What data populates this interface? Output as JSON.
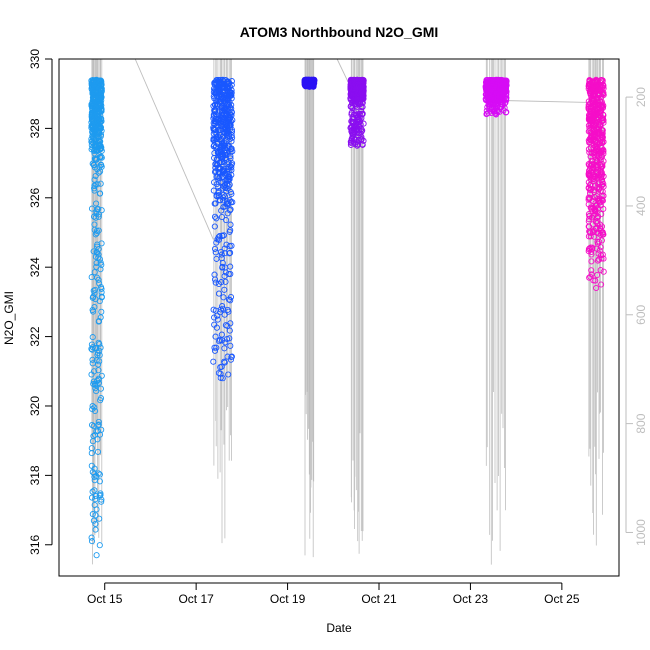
{
  "chart_data": {
    "type": "scatter",
    "title": "ATOM3 Northbound N2O_GMI",
    "xlabel": "Date",
    "ylabel": "N2O_GMI",
    "x_range": [
      "2017-10-14T00:00",
      "2017-10-26T06:00"
    ],
    "ylim": [
      315.1,
      330.0
    ],
    "y_ticks": [
      "316",
      "318",
      "320",
      "322",
      "324",
      "326",
      "328",
      "330"
    ],
    "x_ticks": [
      {
        "date": "2017-10-15T00:00",
        "label": "Oct 15"
      },
      {
        "date": "2017-10-17T00:00",
        "label": "Oct 17"
      },
      {
        "date": "2017-10-19T00:00",
        "label": "Oct 19"
      },
      {
        "date": "2017-10-21T00:00",
        "label": "Oct 21"
      },
      {
        "date": "2017-10-23T00:00",
        "label": "Oct 23"
      },
      {
        "date": "2017-10-25T00:00",
        "label": "Oct 25"
      }
    ],
    "secondary_axis": {
      "side": "right",
      "quantity": "pressure",
      "range": [
        130,
        1080
      ],
      "reversed": true,
      "tick_labels": [
        "200",
        "400",
        "600",
        "800",
        "1000"
      ],
      "color": "#bebebe"
    },
    "profile_line_color": "#bebebe",
    "flights": [
      {
        "start": "2017-10-14T17:00",
        "end": "2017-10-14T22:30",
        "color": "#1e9bef",
        "y_min": 315.7,
        "y_max": 329.4,
        "bulk_low": 327.0
      },
      {
        "start": "2017-10-17T09:00",
        "end": "2017-10-17T19:00",
        "color": "#1a58ff",
        "y_min": 320.8,
        "y_max": 329.4,
        "bulk_low": 325.4
      },
      {
        "start": "2017-10-19T09:00",
        "end": "2017-10-19T14:00",
        "color": "#2b12f5",
        "y_min": 329.2,
        "y_max": 329.4,
        "bulk_low": 329.3
      },
      {
        "start": "2017-10-20T09:00",
        "end": "2017-10-20T16:00",
        "color": "#8a0ef0",
        "y_min": 327.5,
        "y_max": 329.4,
        "bulk_low": 328.8
      },
      {
        "start": "2017-10-23T08:00",
        "end": "2017-10-23T19:00",
        "color": "#d60cf5",
        "y_min": 328.4,
        "y_max": 329.4,
        "bulk_low": 328.7
      },
      {
        "start": "2017-10-25T14:00",
        "end": "2017-10-25T22:00",
        "color": "#f50ec8",
        "y_min": 323.4,
        "y_max": 329.4,
        "bulk_low": 324.2
      }
    ]
  }
}
